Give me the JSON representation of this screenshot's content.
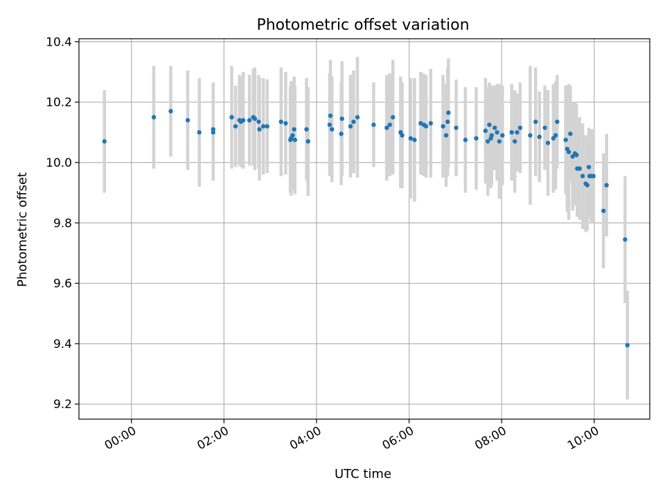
{
  "chart_data": {
    "type": "scatter",
    "title": "Photometric offset variation",
    "xlabel": "UTC time",
    "ylabel": "Photometric offset",
    "xlim": [
      "-1:08",
      "11:12"
    ],
    "ylim": [
      9.15,
      10.41
    ],
    "grid": true,
    "y_ticks": [
      9.2,
      9.4,
      9.6,
      9.8,
      10.0,
      10.2,
      10.4
    ],
    "y_tick_labels": [
      "9.2",
      "9.4",
      "9.6",
      "9.8",
      "10.0",
      "10.2",
      "10.4"
    ],
    "x_ticks": [
      "00:00",
      "02:00",
      "04:00",
      "06:00",
      "08:00",
      "10:00"
    ],
    "colors": {
      "point": "#1f77b4",
      "errorbar": "#d3d3d3",
      "grid": "#b0b0b0",
      "axes": "#000000"
    },
    "series": [
      {
        "x": [
          "-0:35",
          "0:29",
          "0:51",
          "1:13",
          "1:28",
          "1:46",
          "1:46",
          "2:10",
          "2:15",
          "2:20",
          "2:22",
          "2:25",
          "2:33",
          "2:38",
          "2:40",
          "2:45",
          "2:46",
          "2:51",
          "2:56",
          "3:14",
          "3:20",
          "3:26",
          "3:27",
          "3:29",
          "3:31",
          "3:32",
          "3:47",
          "3:49",
          "4:17",
          "4:18",
          "4:20",
          "4:32",
          "4:33",
          "4:44",
          "4:48",
          "4:53",
          "5:14",
          "5:31",
          "5:35",
          "5:39",
          "5:49",
          "5:51",
          "6:02",
          "6:07",
          "6:15",
          "6:19",
          "6:22",
          "6:28",
          "6:44",
          "6:48",
          "6:50",
          "6:51",
          "7:01",
          "7:13",
          "7:27",
          "7:39",
          "7:42",
          "7:44",
          "7:46",
          "7:47",
          "7:51",
          "7:54",
          "7:57",
          "8:01",
          "8:13",
          "8:17",
          "8:20",
          "8:24",
          "8:37",
          "8:44",
          "8:49",
          "8:56",
          "9:00",
          "9:07",
          "9:10",
          "9:12",
          "9:23",
          "9:25",
          "9:27",
          "9:29",
          "9:32",
          "9:35",
          "9:37",
          "9:38",
          "9:41",
          "9:45",
          "9:49",
          "9:51",
          "9:53",
          "9:54",
          "9:56",
          "9:59",
          "10:12",
          "10:16",
          "10:40",
          "10:43"
        ],
        "y": [
          10.07,
          10.15,
          10.17,
          10.14,
          10.1,
          10.1,
          10.11,
          10.15,
          10.12,
          10.14,
          10.135,
          10.14,
          10.14,
          10.15,
          10.145,
          10.135,
          10.11,
          10.12,
          10.12,
          10.135,
          10.13,
          10.075,
          10.08,
          10.09,
          10.11,
          10.075,
          10.11,
          10.07,
          10.125,
          10.155,
          10.11,
          10.095,
          10.145,
          10.12,
          10.135,
          10.15,
          10.125,
          10.115,
          10.125,
          10.15,
          10.1,
          10.09,
          10.08,
          10.075,
          10.13,
          10.125,
          10.12,
          10.13,
          10.12,
          10.09,
          10.135,
          10.165,
          10.115,
          10.075,
          10.08,
          10.105,
          10.07,
          10.125,
          10.08,
          10.09,
          10.115,
          10.1,
          10.07,
          10.09,
          10.1,
          10.07,
          10.1,
          10.115,
          10.09,
          10.135,
          10.085,
          10.115,
          10.065,
          10.08,
          10.09,
          10.135,
          10.075,
          10.045,
          10.035,
          10.095,
          10.02,
          10.03,
          10.025,
          9.98,
          9.98,
          9.955,
          9.93,
          9.925,
          9.985,
          9.955,
          9.955,
          9.955,
          9.84,
          9.925,
          9.745,
          9.395
        ],
        "yerr": [
          0.17,
          0.17,
          0.15,
          0.165,
          0.18,
          0.16,
          0.155,
          0.17,
          0.135,
          0.15,
          0.15,
          0.16,
          0.15,
          0.16,
          0.17,
          0.155,
          0.17,
          0.16,
          0.155,
          0.18,
          0.17,
          0.175,
          0.19,
          0.18,
          0.175,
          0.18,
          0.17,
          0.18,
          0.17,
          0.185,
          0.175,
          0.17,
          0.19,
          0.17,
          0.17,
          0.2,
          0.14,
          0.175,
          0.17,
          0.19,
          0.185,
          0.175,
          0.2,
          0.205,
          0.17,
          0.17,
          0.17,
          0.18,
          0.17,
          0.17,
          0.18,
          0.18,
          0.16,
          0.175,
          0.17,
          0.175,
          0.18,
          0.14,
          0.165,
          0.165,
          0.14,
          0.16,
          0.19,
          0.165,
          0.16,
          0.17,
          0.13,
          0.15,
          0.23,
          0.18,
          0.15,
          0.14,
          0.175,
          0.18,
          0.18,
          0.155,
          0.18,
          0.21,
          0.225,
          0.16,
          0.18,
          0.17,
          0.17,
          0.16,
          0.17,
          0.175,
          0.16,
          0.15,
          0.13,
          0.14,
          0.155,
          0.155,
          0.19,
          0.17,
          0.21,
          0.18
        ]
      }
    ]
  }
}
